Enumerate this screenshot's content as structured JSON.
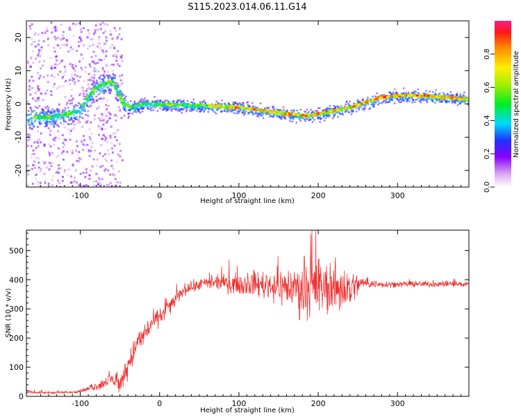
{
  "page_title": "S115.2023.014.06.11.G14",
  "chart_data": [
    {
      "type": "heatmap",
      "title": "S115.2023.014.06.11.G14",
      "xlabel": "Height of straight line (km)",
      "ylabel": "Frequency (Hz)",
      "xlim": [
        -168,
        390
      ],
      "ylim": [
        -25,
        25
      ],
      "x_ticks": [
        -100,
        0,
        100,
        200,
        300
      ],
      "x_tick_labels": [
        "-100",
        "0",
        "100",
        "200",
        "300"
      ],
      "y_ticks": [
        -20,
        -10,
        0,
        10,
        20
      ],
      "y_tick_labels": [
        "-20",
        "-10",
        "0",
        "10",
        "20"
      ],
      "ridge": {
        "x": [
          -168,
          -140,
          -115,
          -100,
          -90,
          -80,
          -70,
          -60,
          -52,
          -45,
          -35,
          -20,
          0,
          50,
          100,
          130,
          160,
          190,
          200,
          220,
          240,
          260,
          280,
          300,
          330,
          360,
          390
        ],
        "y": [
          -4,
          -4,
          -3,
          -2,
          2,
          5,
          6,
          7,
          3,
          0,
          -1,
          0,
          0,
          -0.5,
          -1,
          -2,
          -3,
          -3.5,
          -3,
          -2,
          -1,
          0.5,
          2,
          2.5,
          2.5,
          2,
          1.5
        ]
      },
      "colorbar": {
        "label": "Normalized spectral amplitude",
        "range": [
          0,
          1
        ],
        "ticks": [
          0,
          0.2,
          0.4,
          0.6,
          0.8
        ],
        "tick_labels": [
          "0.0",
          "0.2",
          "0.4",
          "0.6",
          "0.8"
        ]
      }
    },
    {
      "type": "line",
      "xlabel": "Height of straight line (km)",
      "ylabel": "SNR (10 * v/v)",
      "xlim": [
        -168,
        390
      ],
      "ylim": [
        0,
        570
      ],
      "x_ticks": [
        -100,
        0,
        100,
        200,
        300
      ],
      "x_tick_labels": [
        "-100",
        "0",
        "100",
        "200",
        "300"
      ],
      "y_ticks": [
        0,
        100,
        200,
        300,
        400,
        500
      ],
      "y_tick_labels": [
        "0",
        "100",
        "200",
        "300",
        "400",
        "500"
      ],
      "series": [
        {
          "name": "SNR",
          "color": "#ee3333",
          "x": [
            -168,
            -140,
            -110,
            -90,
            -70,
            -60,
            -50,
            -40,
            -30,
            -20,
            -10,
            0,
            10,
            20,
            30,
            50,
            80,
            100,
            130,
            160,
            180,
            200,
            220,
            240,
            255,
            270,
            300,
            330,
            360,
            390
          ],
          "y": [
            15,
            12,
            14,
            25,
            45,
            60,
            40,
            110,
            170,
            210,
            250,
            270,
            305,
            330,
            365,
            385,
            390,
            385,
            385,
            375,
            370,
            370,
            375,
            370,
            390,
            385,
            385,
            385,
            385,
            385
          ],
          "spread": [
            6,
            6,
            6,
            12,
            30,
            40,
            40,
            60,
            70,
            60,
            50,
            45,
            40,
            35,
            30,
            30,
            40,
            50,
            70,
            100,
            140,
            140,
            130,
            110,
            30,
            20,
            15,
            15,
            15,
            15
          ]
        }
      ]
    }
  ]
}
